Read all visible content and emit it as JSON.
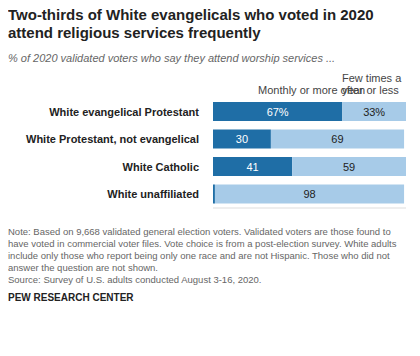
{
  "chart_data": {
    "type": "bar",
    "orientation": "horizontal",
    "stacked": true,
    "data_labels": true,
    "tick_labels": "y",
    "grid": false,
    "title": "Two-thirds of White evangelicals who voted in 2020 attend religious services frequently",
    "subtitle": "% of 2020 validated voters who say they attend worship services ...",
    "categories": [
      "White evangelical Protestant",
      "White Protestant, not evangelical",
      "White Catholic",
      "White unaffiliated"
    ],
    "series": [
      {
        "name": "Monthly or more often",
        "color": "#1f6ea6",
        "values": [
          67,
          30,
          41,
          1
        ],
        "value_labels": [
          "67%",
          "30",
          "41",
          null
        ]
      },
      {
        "name": "Few times a year or less",
        "color": "#a7cbe8",
        "values": [
          33,
          69,
          59,
          98
        ],
        "value_labels": [
          "33%",
          "69",
          "59",
          "98"
        ]
      }
    ],
    "xlim": [
      0,
      100
    ],
    "note": "Note: Based on 9,668 validated general election voters. Validated voters are those found to have voted in commercial voter files. Vote choice is from a post-election survey. White adults include only those who report being only one race and are not Hispanic. Those who did not answer the question are not shown.",
    "source": "Source: Survey of U.S. adults conducted August 3-16, 2020.",
    "credit": "PEW RESEARCH CENTER"
  }
}
